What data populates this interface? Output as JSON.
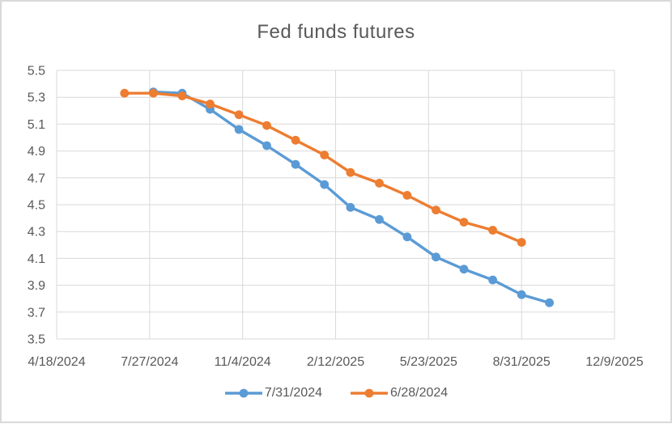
{
  "chart": {
    "title": "Fed funds futures"
  },
  "chart_data": {
    "type": "line",
    "title": "Fed funds futures",
    "grid": true,
    "legend_position": "bottom",
    "x_axis": {
      "type": "date",
      "min": "4/18/2024",
      "max": "12/9/2025",
      "tick_labels": [
        "4/18/2024",
        "7/27/2024",
        "11/4/2024",
        "2/12/2025",
        "5/23/2025",
        "8/31/2025",
        "12/9/2025"
      ]
    },
    "y_axis": {
      "min": 3.5,
      "max": 5.5,
      "tick_step": 0.2,
      "tick_labels": [
        "5.5",
        "5.3",
        "5.1",
        "4.9",
        "4.7",
        "4.5",
        "4.3",
        "4.1",
        "3.9",
        "3.7",
        "3.5"
      ]
    },
    "series": [
      {
        "name": "7/31/2024",
        "color": "#5B9BD5",
        "x": [
          "7/31/2024",
          "8/31/2024",
          "9/30/2024",
          "10/31/2024",
          "11/30/2024",
          "12/31/2024",
          "1/31/2025",
          "2/28/2025",
          "3/31/2025",
          "4/30/2025",
          "5/31/2025",
          "6/30/2025",
          "7/31/2025",
          "8/31/2025",
          "9/30/2025"
        ],
        "values": [
          5.34,
          5.33,
          5.21,
          5.06,
          4.94,
          4.8,
          4.65,
          4.48,
          4.39,
          4.26,
          4.11,
          4.02,
          3.94,
          3.83,
          3.77
        ]
      },
      {
        "name": "6/28/2024",
        "color": "#ED7D31",
        "x": [
          "6/30/2024",
          "7/31/2024",
          "8/31/2024",
          "9/30/2024",
          "10/31/2024",
          "11/30/2024",
          "12/31/2024",
          "1/31/2025",
          "2/28/2025",
          "3/31/2025",
          "4/30/2025",
          "5/31/2025",
          "6/30/2025",
          "7/31/2025",
          "8/31/2025"
        ],
        "values": [
          5.33,
          5.33,
          5.31,
          5.25,
          5.17,
          5.09,
          4.98,
          4.87,
          4.74,
          4.66,
          4.57,
          4.46,
          4.37,
          4.31,
          4.22
        ]
      }
    ],
    "colors": {
      "grid": "#D9D9D9",
      "axis_text": "#595959",
      "title_text": "#595959",
      "frame_border": "#D9D9D9"
    }
  },
  "legend": {
    "items": [
      {
        "label": "7/31/2024"
      },
      {
        "label": "6/28/2024"
      }
    ]
  }
}
